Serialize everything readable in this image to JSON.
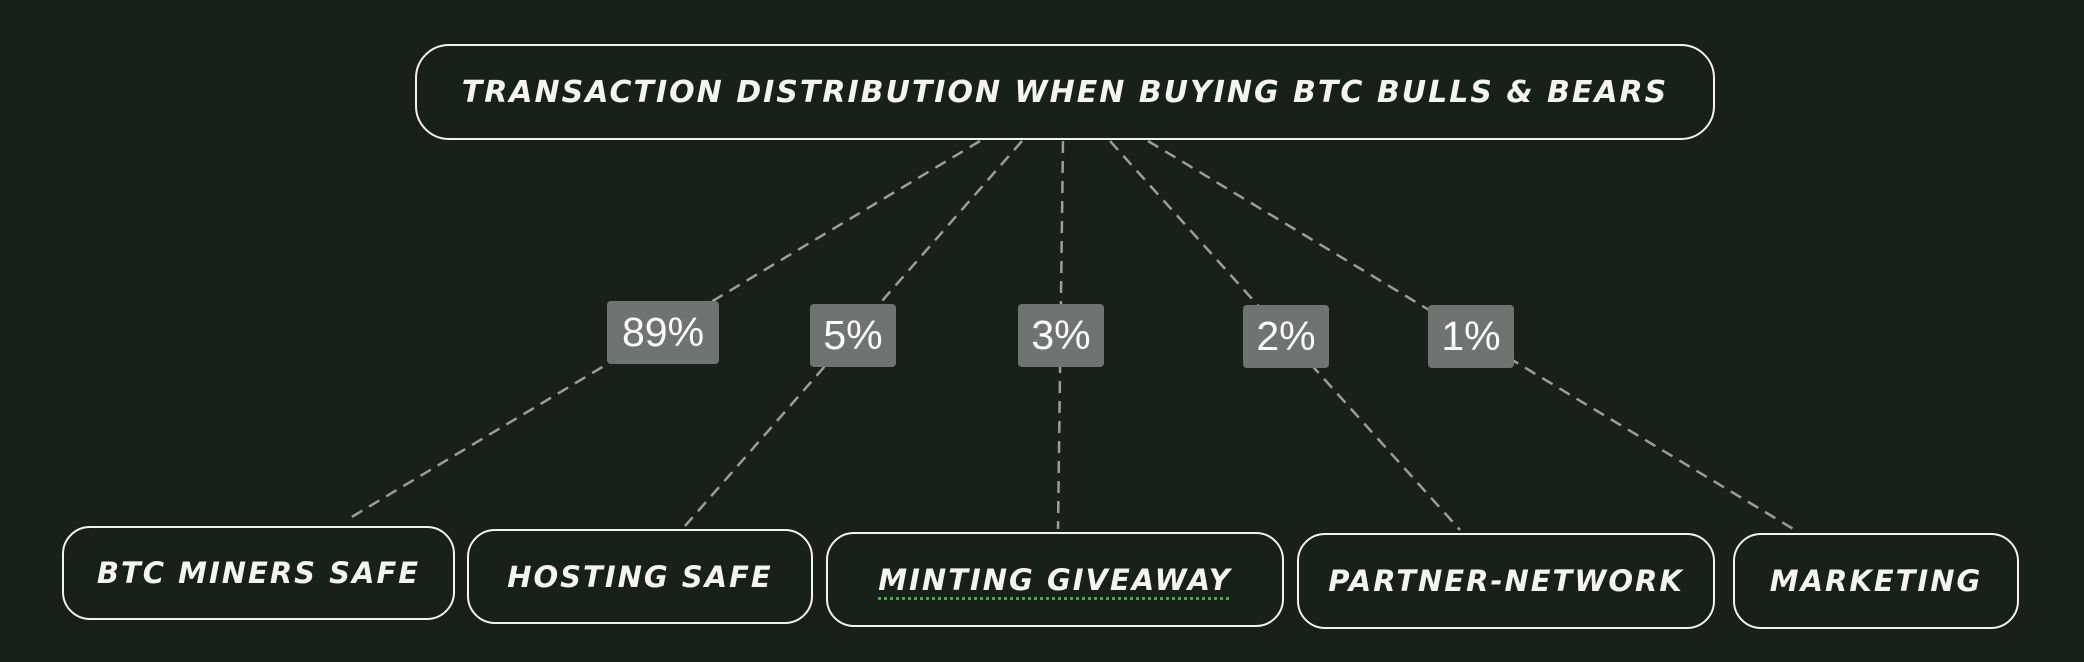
{
  "diagram": {
    "root": {
      "label": "Transaction distribution when buying BTC Bulls & Bears"
    },
    "branches": [
      {
        "label": "BTC Miners Safe",
        "share": "89%"
      },
      {
        "label": "Hosting Safe",
        "share": "5%"
      },
      {
        "label": "Minting Giveaway",
        "share": "3%"
      },
      {
        "label": "Partner-Network",
        "share": "2%"
      },
      {
        "label": "Marketing",
        "share": "1%"
      }
    ]
  },
  "colors": {
    "background": "#18201a",
    "node_border": "#f2f2ee",
    "connector": "#9a9e98",
    "share_badge": "#707470",
    "spellcheck_underline": "#3fae4a"
  }
}
